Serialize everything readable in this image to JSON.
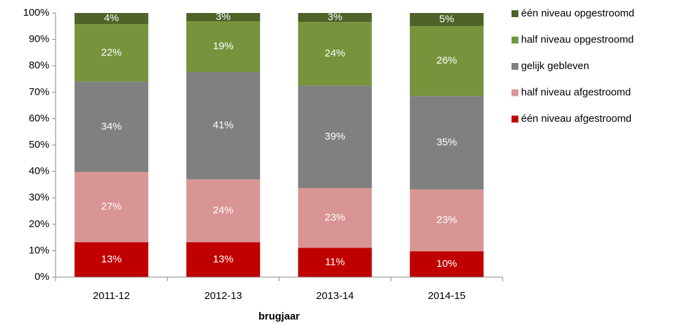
{
  "chart_data": {
    "type": "stacked-bar",
    "x_label": "brugjaar",
    "categories": [
      "2011-12",
      "2012-13",
      "2013-14",
      "2014-15"
    ],
    "series": [
      {
        "name": "één niveau afgestroomd",
        "color": "#c00000",
        "values": [
          13.2,
          13.2,
          11.1,
          9.8
        ],
        "value_labels": [
          "13%",
          "13%",
          "11%",
          "10%"
        ]
      },
      {
        "name": "half niveau afgestroomd",
        "color": "#d99594",
        "values": [
          26.6,
          23.8,
          22.6,
          23.4
        ],
        "value_labels": [
          "27%",
          "24%",
          "23%",
          "23%"
        ]
      },
      {
        "name": "gelijk gebleven",
        "color": "#808080",
        "values": [
          34.2,
          40.7,
          38.8,
          35.4
        ],
        "value_labels": [
          "34%",
          "41%",
          "39%",
          "35%"
        ]
      },
      {
        "name": "half niveau opgestroomd",
        "color": "#77933c",
        "values": [
          21.8,
          19.2,
          24.1,
          26.4
        ],
        "value_labels": [
          "22%",
          "19%",
          "24%",
          "26%"
        ]
      },
      {
        "name": "één niveau opgestroomd",
        "color": "#4f6228",
        "values": [
          4.2,
          3.1,
          3.4,
          5.0
        ],
        "value_labels": [
          "4%",
          "3%",
          "3%",
          "5%"
        ]
      }
    ],
    "ylim": [
      0,
      100
    ],
    "yticks": [
      {
        "value": 0,
        "label": "0%"
      },
      {
        "value": 10,
        "label": "10%"
      },
      {
        "value": 20,
        "label": "20%"
      },
      {
        "value": 30,
        "label": "30%"
      },
      {
        "value": 40,
        "label": "40%"
      },
      {
        "value": 50,
        "label": "50%"
      },
      {
        "value": 60,
        "label": "60%"
      },
      {
        "value": 70,
        "label": "70%"
      },
      {
        "value": 80,
        "label": "80%"
      },
      {
        "value": 90,
        "label": "90%"
      },
      {
        "value": 100,
        "label": "100%"
      }
    ],
    "legend": "right"
  }
}
